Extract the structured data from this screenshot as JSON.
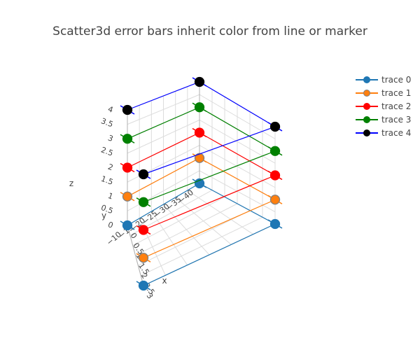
{
  "chart_data": {
    "type": "scatter3d",
    "title": "Scatter3d error bars inherit color from line or marker",
    "axes": {
      "x": {
        "title": "x",
        "range": [
          0,
          3
        ],
        "ticks": [
          "0",
          "0.5",
          "1",
          "1.5",
          "2",
          "2.5",
          "3"
        ]
      },
      "y": {
        "title": "y",
        "range": [
          -40,
          -10
        ],
        "ticks": [
          "−40",
          "−35",
          "−30",
          "−25",
          "−20",
          "−15",
          "−10"
        ]
      },
      "z": {
        "title": "z",
        "range": [
          0,
          4
        ],
        "ticks": [
          "0",
          "0.5",
          "1",
          "1.5",
          "2",
          "2.5",
          "3",
          "3.5",
          "4"
        ]
      }
    },
    "grid": true,
    "legend_position": "top-right",
    "series": [
      {
        "name": "trace 0",
        "color": "#1f77b4",
        "marker_line": "#1f77b4",
        "points": [
          [
            0,
            -10,
            0
          ],
          [
            0,
            -40,
            0
          ],
          [
            3,
            -40,
            0
          ],
          [
            3,
            -10,
            0
          ]
        ]
      },
      {
        "name": "trace 1",
        "color": "#ff7f0e",
        "marker_line": "#7f7f7f",
        "points": [
          [
            0,
            -10,
            1
          ],
          [
            0,
            -40,
            1
          ],
          [
            3,
            -40,
            1
          ],
          [
            3,
            -10,
            1
          ]
        ]
      },
      {
        "name": "trace 2",
        "color": "#ff0000",
        "marker_line": "#ff0000",
        "points": [
          [
            0,
            -10,
            2
          ],
          [
            0,
            -40,
            2
          ],
          [
            3,
            -40,
            2
          ],
          [
            3,
            -10,
            2
          ]
        ]
      },
      {
        "name": "trace 3",
        "color": "#008000",
        "marker_line": "#008000",
        "points": [
          [
            0,
            -10,
            3
          ],
          [
            0,
            -40,
            3
          ],
          [
            3,
            -40,
            3
          ],
          [
            3,
            -10,
            3
          ]
        ]
      },
      {
        "name": "trace 4",
        "color": "#000000",
        "line_color": "#0000ff",
        "marker_line": "#000000",
        "points": [
          [
            0,
            -10,
            4
          ],
          [
            0,
            -40,
            4
          ],
          [
            3,
            -40,
            4
          ],
          [
            3,
            -10,
            4
          ]
        ]
      }
    ]
  }
}
